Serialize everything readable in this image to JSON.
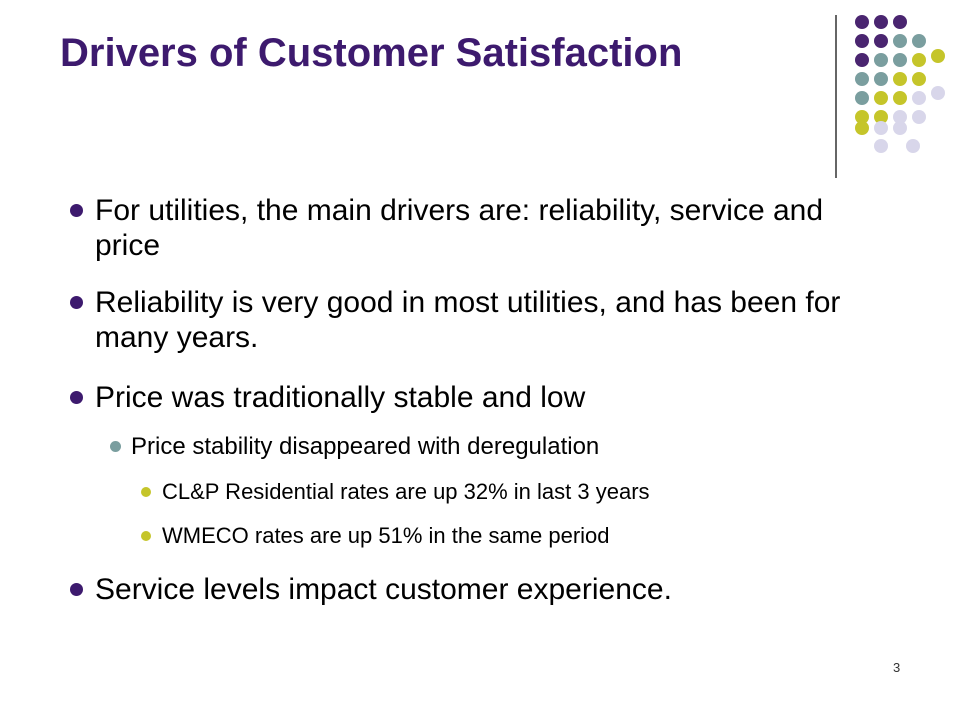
{
  "title": "Drivers of Customer Satisfaction",
  "bullets": [
    {
      "level": 1,
      "text": "For utilities, the main drivers are: reliability, service and price"
    },
    {
      "level": 1,
      "text": "Reliability is very good in most utilities, and has been for many years."
    },
    {
      "level": 1,
      "text": "Price was traditionally stable and low"
    },
    {
      "level": 2,
      "text": "Price stability disappeared with deregulation"
    },
    {
      "level": 3,
      "text": "CL&P Residential rates are up 32% in last 3 years"
    },
    {
      "level": 3,
      "text": "WMECO rates are up 51% in the same period"
    },
    {
      "level": 1,
      "text": "Service levels impact customer experience."
    }
  ],
  "page_number": "3"
}
